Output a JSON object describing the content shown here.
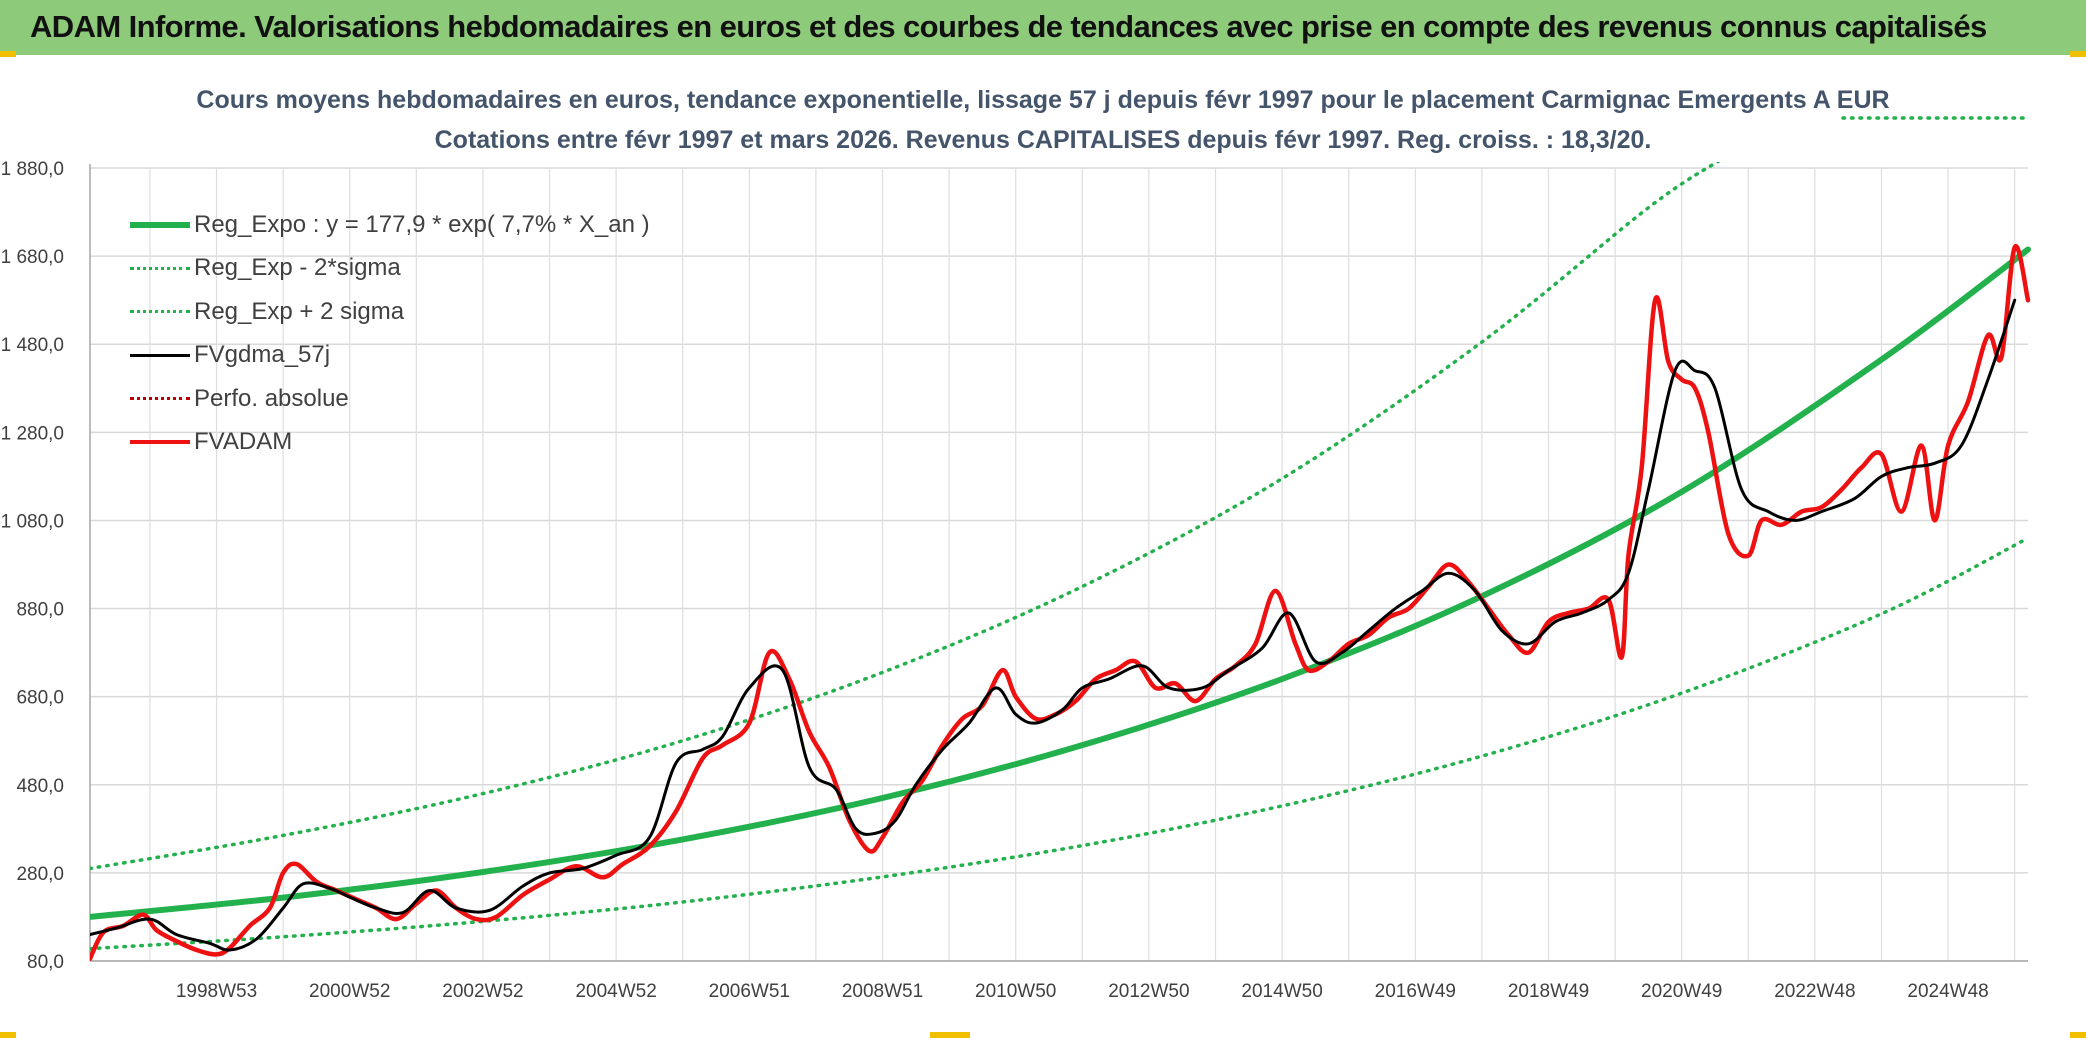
{
  "header": {
    "title": "ADAM Informe. Valorisations hebdomadaires en euros et des courbes de tendances avec prise en compte des revenus connus capitalisés"
  },
  "chart_data": {
    "type": "line",
    "title": "Cours moyens hebdomadaires en euros, tendance exponentielle, lissage 57 j depuis févr 1997 pour le placement Carmignac Emergents A EUR",
    "subtitle": "Cotations entre févr 1997 et mars 2026. Revenus CAPITALISES depuis févr 1997. Reg. croiss. : 18,3/20.",
    "xlabel": "",
    "ylabel": "",
    "x_range": [
      1997.1,
      2026.2
    ],
    "ylim": [
      80,
      1880
    ],
    "y_ticks": [
      "80,0",
      "280,0",
      "480,0",
      "680,0",
      "880,0",
      "1 080,0",
      "1 280,0",
      "1 480,0",
      "1 680,0",
      "1 880,0"
    ],
    "x_tick_labels": [
      "1998W53",
      "2000W52",
      "2002W52",
      "2004W52",
      "2006W51",
      "2008W51",
      "2010W50",
      "2012W50",
      "2014W50",
      "2016W49",
      "2018W49",
      "2020W49",
      "2022W48",
      "2024W48"
    ],
    "grid": true,
    "legend_position": "top-left",
    "series": [
      {
        "name": "Reg_Expo : y = 177,9 * exp( 7,7% *  X_an )",
        "style": "solid-thick",
        "color": "#22b14c",
        "x": [
          1997.1,
          2000,
          2003,
          2006,
          2009,
          2012,
          2015,
          2018,
          2021,
          2024,
          2026.2
        ],
        "y": [
          180,
          224,
          282,
          356,
          450,
          570,
          720,
          908,
          1145,
          1445,
          1695
        ]
      },
      {
        "name": "Reg_Exp - 2*sigma",
        "style": "dotted",
        "color": "#22b14c",
        "x": [
          1997.1,
          2000,
          2003,
          2006,
          2009,
          2012,
          2015,
          2018,
          2021,
          2024,
          2026.2
        ],
        "y": [
          108,
          135,
          170,
          214,
          271,
          342,
          432,
          545,
          688,
          868,
          1040
        ]
      },
      {
        "name": "Reg_Exp + 2 sigma",
        "style": "dotted",
        "color": "#22b14c",
        "x": [
          1997.1,
          2000,
          2003,
          2006,
          2009,
          2012,
          2015,
          2018,
          2020.5,
          2021.6
        ],
        "y": [
          290,
          365,
          460,
          580,
          735,
          930,
          1175,
          1485,
          1790,
          1900
        ]
      },
      {
        "name": "FVgdma_57j",
        "style": "solid",
        "color": "#000000",
        "x": [
          1997.1,
          1997.5,
          1998.0,
          1998.4,
          1998.9,
          1999.2,
          1999.6,
          2000.0,
          2000.3,
          2000.7,
          2001.0,
          2001.4,
          2001.8,
          2002.2,
          2002.6,
          2003.1,
          2003.6,
          2004.0,
          2004.5,
          2005.0,
          2005.5,
          2005.9,
          2006.3,
          2006.6,
          2007.0,
          2007.5,
          2007.9,
          2008.3,
          2008.6,
          2008.9,
          2009.2,
          2009.5,
          2009.9,
          2010.3,
          2010.7,
          2011.0,
          2011.3,
          2011.7,
          2012.0,
          2012.4,
          2012.9,
          2013.3,
          2013.8,
          2014.2,
          2014.7,
          2015.1,
          2015.5,
          2015.9,
          2016.3,
          2016.7,
          2017.1,
          2017.5,
          2017.9,
          2018.3,
          2018.7,
          2019.1,
          2019.5,
          2019.9,
          2020.2,
          2020.5,
          2020.9,
          2021.2,
          2021.5,
          2021.9,
          2022.3,
          2022.7,
          2023.1,
          2023.6,
          2024.0,
          2024.4,
          2024.8,
          2025.2,
          2025.6,
          2026.0
        ],
        "y": [
          140,
          155,
          175,
          140,
          120,
          105,
          130,
          200,
          255,
          245,
          225,
          200,
          190,
          240,
          200,
          195,
          250,
          280,
          290,
          320,
          360,
          530,
          560,
          590,
          700,
          740,
          520,
          470,
          380,
          370,
          400,
          480,
          560,
          620,
          700,
          640,
          620,
          650,
          700,
          720,
          750,
          700,
          700,
          740,
          790,
          870,
          760,
          780,
          830,
          880,
          920,
          960,
          920,
          830,
          800,
          850,
          870,
          900,
          960,
          1150,
          1420,
          1420,
          1380,
          1150,
          1100,
          1080,
          1100,
          1130,
          1180,
          1200,
          1210,
          1250,
          1400,
          1580
        ]
      },
      {
        "name": "Perfo. absolue",
        "style": "dotted",
        "color": "#c00000",
        "x": [],
        "y": []
      },
      {
        "name": "FVADAM",
        "style": "solid-thick",
        "color": "#ee1111",
        "x": [
          1997.1,
          1997.3,
          1997.6,
          1997.9,
          1998.1,
          1998.4,
          1998.7,
          1999.0,
          1999.2,
          1999.5,
          1999.8,
          2000.0,
          2000.2,
          2000.5,
          2000.8,
          2001.1,
          2001.4,
          2001.7,
          2002.0,
          2002.3,
          2002.6,
          2002.9,
          2003.2,
          2003.6,
          2004.0,
          2004.4,
          2004.8,
          2005.1,
          2005.5,
          2005.9,
          2006.3,
          2006.6,
          2007.0,
          2007.3,
          2007.6,
          2007.9,
          2008.2,
          2008.5,
          2008.8,
          2009.0,
          2009.3,
          2009.6,
          2009.9,
          2010.2,
          2010.5,
          2010.8,
          2011.0,
          2011.3,
          2011.6,
          2011.9,
          2012.2,
          2012.5,
          2012.8,
          2013.1,
          2013.4,
          2013.7,
          2014.0,
          2014.3,
          2014.6,
          2014.9,
          2015.2,
          2015.4,
          2015.7,
          2016.0,
          2016.3,
          2016.6,
          2016.9,
          2017.2,
          2017.5,
          2017.8,
          2018.1,
          2018.4,
          2018.7,
          2019.0,
          2019.3,
          2019.6,
          2019.9,
          2020.1,
          2020.2,
          2020.4,
          2020.6,
          2020.8,
          2021.0,
          2021.2,
          2021.4,
          2021.7,
          2022.0,
          2022.2,
          2022.5,
          2022.8,
          2023.1,
          2023.4,
          2023.7,
          2024.0,
          2024.3,
          2024.6,
          2024.8,
          2025.0,
          2025.3,
          2025.6,
          2025.8,
          2026.0,
          2026.2
        ],
        "y": [
          85,
          145,
          160,
          185,
          150,
          125,
          105,
          95,
          110,
          160,
          200,
          280,
          300,
          260,
          240,
          220,
          200,
          175,
          210,
          240,
          200,
          175,
          180,
          230,
          265,
          295,
          270,
          300,
          340,
          420,
          540,
          570,
          620,
          780,
          720,
          600,
          520,
          400,
          330,
          360,
          440,
          490,
          570,
          630,
          660,
          740,
          680,
          630,
          640,
          670,
          720,
          740,
          760,
          700,
          710,
          670,
          720,
          750,
          800,
          920,
          800,
          740,
          760,
          800,
          820,
          860,
          880,
          930,
          980,
          940,
          880,
          820,
          780,
          850,
          870,
          880,
          900,
          770,
          1000,
          1200,
          1580,
          1440,
          1400,
          1380,
          1280,
          1050,
          1000,
          1080,
          1070,
          1100,
          1110,
          1150,
          1200,
          1230,
          1100,
          1250,
          1080,
          1250,
          1350,
          1500,
          1450,
          1700,
          1580
        ]
      }
    ]
  }
}
